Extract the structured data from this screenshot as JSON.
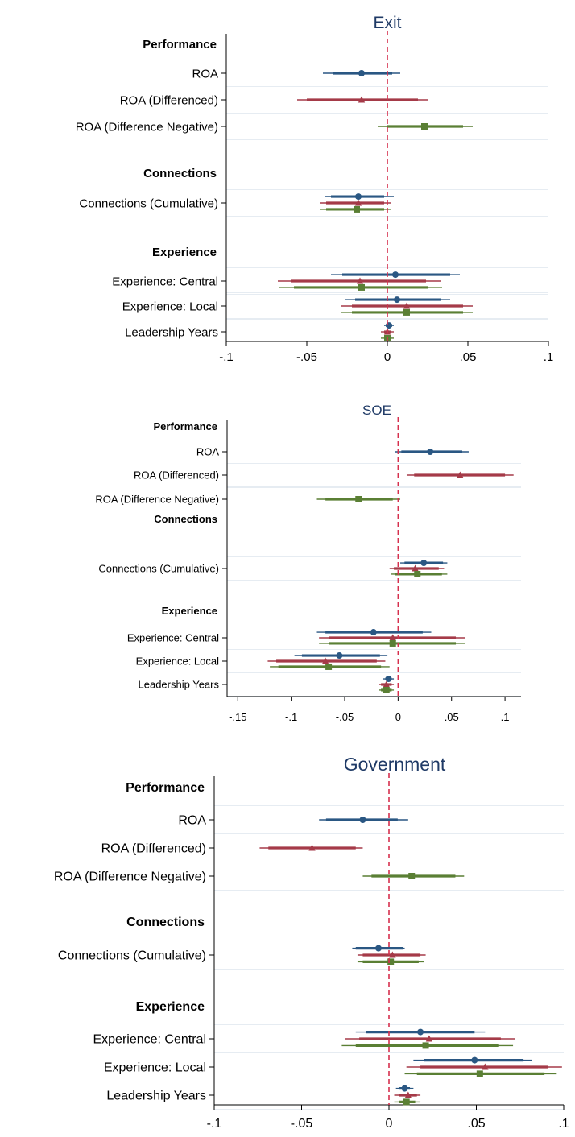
{
  "chart_data": [
    {
      "type": "coefficient-plot",
      "title": "Exit",
      "xlim": [
        -0.1,
        0.1
      ],
      "xticks": [
        -0.1,
        -0.05,
        0,
        0.05,
        0.1
      ],
      "xtick_labels": [
        "-.1",
        "-.05",
        "0",
        ".05",
        ".1"
      ],
      "reference_line": 0,
      "groups": [
        {
          "heading": "Performance",
          "rows": [
            {
              "label": "ROA",
              "estimates": [
                {
                  "series": 0,
                  "est": -0.016,
                  "ci90": [
                    -0.034,
                    0.003
                  ],
                  "ci95": [
                    -0.04,
                    0.008
                  ]
                }
              ]
            },
            {
              "label": "ROA (Differenced)",
              "estimates": [
                {
                  "series": 1,
                  "est": -0.016,
                  "ci90": [
                    -0.05,
                    0.019
                  ],
                  "ci95": [
                    -0.056,
                    0.025
                  ]
                }
              ]
            },
            {
              "label": "ROA (Difference Negative)",
              "estimates": [
                {
                  "series": 2,
                  "est": 0.023,
                  "ci90": [
                    0.0,
                    0.047
                  ],
                  "ci95": [
                    -0.006,
                    0.053
                  ]
                }
              ]
            }
          ]
        },
        {
          "heading": "Connections",
          "rows": [
            {
              "label": "Connections (Cumulative)",
              "estimates": [
                {
                  "series": 0,
                  "est": -0.018,
                  "ci90": [
                    -0.035,
                    -0.002
                  ],
                  "ci95": [
                    -0.039,
                    0.004
                  ]
                },
                {
                  "series": 1,
                  "est": -0.018,
                  "ci90": [
                    -0.038,
                    -0.002
                  ],
                  "ci95": [
                    -0.042,
                    0.002
                  ]
                },
                {
                  "series": 2,
                  "est": -0.019,
                  "ci90": [
                    -0.038,
                    -0.002
                  ],
                  "ci95": [
                    -0.042,
                    0.002
                  ]
                }
              ]
            }
          ]
        },
        {
          "heading": "Experience",
          "rows": [
            {
              "label": "Experience: Central",
              "estimates": [
                {
                  "series": 0,
                  "est": 0.005,
                  "ci90": [
                    -0.028,
                    0.039
                  ],
                  "ci95": [
                    -0.035,
                    0.045
                  ]
                },
                {
                  "series": 1,
                  "est": -0.017,
                  "ci90": [
                    -0.06,
                    0.024
                  ],
                  "ci95": [
                    -0.068,
                    0.033
                  ]
                },
                {
                  "series": 2,
                  "est": -0.016,
                  "ci90": [
                    -0.058,
                    0.025
                  ],
                  "ci95": [
                    -0.067,
                    0.034
                  ]
                }
              ]
            },
            {
              "label": "Experience: Local",
              "estimates": [
                {
                  "series": 0,
                  "est": 0.006,
                  "ci90": [
                    -0.02,
                    0.033
                  ],
                  "ci95": [
                    -0.026,
                    0.039
                  ]
                },
                {
                  "series": 1,
                  "est": 0.012,
                  "ci90": [
                    -0.022,
                    0.047
                  ],
                  "ci95": [
                    -0.029,
                    0.053
                  ]
                },
                {
                  "series": 2,
                  "est": 0.012,
                  "ci90": [
                    -0.022,
                    0.047
                  ],
                  "ci95": [
                    -0.029,
                    0.053
                  ]
                }
              ]
            },
            {
              "label": "Leadership Years",
              "estimates": [
                {
                  "series": 0,
                  "est": 0.001,
                  "ci90": [
                    -0.001,
                    0.003
                  ],
                  "ci95": [
                    -0.002,
                    0.004
                  ]
                },
                {
                  "series": 1,
                  "est": 0.0,
                  "ci90": [
                    -0.002,
                    0.002
                  ],
                  "ci95": [
                    -0.004,
                    0.004
                  ]
                },
                {
                  "series": 2,
                  "est": 0.0,
                  "ci90": [
                    -0.002,
                    0.002
                  ],
                  "ci95": [
                    -0.004,
                    0.004
                  ]
                }
              ]
            }
          ]
        }
      ]
    },
    {
      "type": "coefficient-plot",
      "title": "SOE",
      "xlim": [
        -0.16,
        0.115
      ],
      "xticks": [
        -0.15,
        -0.1,
        -0.05,
        0,
        0.05,
        0.1
      ],
      "xtick_labels": [
        "-.15",
        "-.1",
        "-.05",
        "0",
        ".05",
        ".1"
      ],
      "reference_line": 0,
      "groups": [
        {
          "heading": "Performance",
          "rows": [
            {
              "label": "ROA",
              "estimates": [
                {
                  "series": 0,
                  "est": 0.03,
                  "ci90": [
                    0.003,
                    0.06
                  ],
                  "ci95": [
                    -0.003,
                    0.066
                  ]
                }
              ]
            },
            {
              "label": "ROA (Differenced)",
              "estimates": [
                {
                  "series": 1,
                  "est": 0.058,
                  "ci90": [
                    0.015,
                    0.1
                  ],
                  "ci95": [
                    0.008,
                    0.108
                  ]
                }
              ]
            },
            {
              "label": "ROA (Difference Negative)",
              "estimates": [
                {
                  "series": 2,
                  "est": -0.037,
                  "ci90": [
                    -0.068,
                    -0.005
                  ],
                  "ci95": [
                    -0.076,
                    0.002
                  ]
                }
              ]
            }
          ]
        },
        {
          "heading": "Connections",
          "rows": [
            {
              "label": "Connections (Cumulative)",
              "estimates": [
                {
                  "series": 0,
                  "est": 0.024,
                  "ci90": [
                    0.006,
                    0.042
                  ],
                  "ci95": [
                    0.002,
                    0.046
                  ]
                },
                {
                  "series": 1,
                  "est": 0.016,
                  "ci90": [
                    -0.004,
                    0.038
                  ],
                  "ci95": [
                    -0.008,
                    0.043
                  ]
                },
                {
                  "series": 2,
                  "est": 0.018,
                  "ci90": [
                    -0.003,
                    0.041
                  ],
                  "ci95": [
                    -0.007,
                    0.046
                  ]
                }
              ]
            }
          ]
        },
        {
          "heading": "Experience",
          "rows": [
            {
              "label": "Experience: Central",
              "estimates": [
                {
                  "series": 0,
                  "est": -0.023,
                  "ci90": [
                    -0.068,
                    0.023
                  ],
                  "ci95": [
                    -0.076,
                    0.031
                  ]
                },
                {
                  "series": 1,
                  "est": -0.005,
                  "ci90": [
                    -0.065,
                    0.054
                  ],
                  "ci95": [
                    -0.074,
                    0.063
                  ]
                },
                {
                  "series": 2,
                  "est": -0.005,
                  "ci90": [
                    -0.065,
                    0.054
                  ],
                  "ci95": [
                    -0.074,
                    0.063
                  ]
                }
              ]
            },
            {
              "label": "Experience: Local",
              "estimates": [
                {
                  "series": 0,
                  "est": -0.055,
                  "ci90": [
                    -0.09,
                    -0.017
                  ],
                  "ci95": [
                    -0.097,
                    -0.01
                  ]
                },
                {
                  "series": 1,
                  "est": -0.068,
                  "ci90": [
                    -0.114,
                    -0.02
                  ],
                  "ci95": [
                    -0.122,
                    -0.012
                  ]
                },
                {
                  "series": 2,
                  "est": -0.065,
                  "ci90": [
                    -0.112,
                    -0.016
                  ],
                  "ci95": [
                    -0.12,
                    -0.008
                  ]
                }
              ]
            },
            {
              "label": "Leadership Years",
              "estimates": [
                {
                  "series": 0,
                  "est": -0.009,
                  "ci90": [
                    -0.012,
                    -0.006
                  ],
                  "ci95": [
                    -0.014,
                    -0.004
                  ]
                },
                {
                  "series": 1,
                  "est": -0.011,
                  "ci90": [
                    -0.016,
                    -0.006
                  ],
                  "ci95": [
                    -0.018,
                    -0.004
                  ]
                },
                {
                  "series": 2,
                  "est": -0.011,
                  "ci90": [
                    -0.016,
                    -0.006
                  ],
                  "ci95": [
                    -0.018,
                    -0.004
                  ]
                }
              ]
            }
          ]
        }
      ]
    },
    {
      "type": "coefficient-plot",
      "title": "Government",
      "xlim": [
        -0.1,
        0.1
      ],
      "xticks": [
        -0.1,
        -0.05,
        0,
        0.05,
        0.1
      ],
      "xtick_labels": [
        "-.1",
        "-.05",
        "0",
        ".05",
        ".1"
      ],
      "reference_line": 0,
      "groups": [
        {
          "heading": "Performance",
          "rows": [
            {
              "label": "ROA",
              "estimates": [
                {
                  "series": 0,
                  "est": -0.015,
                  "ci90": [
                    -0.036,
                    0.005
                  ],
                  "ci95": [
                    -0.04,
                    0.011
                  ]
                }
              ]
            },
            {
              "label": "ROA (Differenced)",
              "estimates": [
                {
                  "series": 1,
                  "est": -0.044,
                  "ci90": [
                    -0.069,
                    -0.019
                  ],
                  "ci95": [
                    -0.074,
                    -0.015
                  ]
                }
              ]
            },
            {
              "label": "ROA (Difference Negative)",
              "estimates": [
                {
                  "series": 2,
                  "est": 0.013,
                  "ci90": [
                    -0.01,
                    0.038
                  ],
                  "ci95": [
                    -0.015,
                    0.043
                  ]
                }
              ]
            }
          ]
        },
        {
          "heading": "Connections",
          "rows": [
            {
              "label": "Connections (Cumulative)",
              "estimates": [
                {
                  "series": 0,
                  "est": -0.006,
                  "ci90": [
                    -0.019,
                    0.008
                  ],
                  "ci95": [
                    -0.021,
                    0.009
                  ]
                },
                {
                  "series": 1,
                  "est": 0.002,
                  "ci90": [
                    -0.015,
                    0.018
                  ],
                  "ci95": [
                    -0.018,
                    0.021
                  ]
                },
                {
                  "series": 2,
                  "est": 0.001,
                  "ci90": [
                    -0.015,
                    0.017
                  ],
                  "ci95": [
                    -0.018,
                    0.02
                  ]
                }
              ]
            }
          ]
        },
        {
          "heading": "Experience",
          "rows": [
            {
              "label": "Experience: Central",
              "estimates": [
                {
                  "series": 0,
                  "est": 0.018,
                  "ci90": [
                    -0.013,
                    0.049
                  ],
                  "ci95": [
                    -0.019,
                    0.055
                  ]
                },
                {
                  "series": 1,
                  "est": 0.023,
                  "ci90": [
                    -0.017,
                    0.064
                  ],
                  "ci95": [
                    -0.025,
                    0.072
                  ]
                },
                {
                  "series": 2,
                  "est": 0.021,
                  "ci90": [
                    -0.019,
                    0.063
                  ],
                  "ci95": [
                    -0.027,
                    0.071
                  ]
                }
              ]
            },
            {
              "label": "Experience: Local",
              "estimates": [
                {
                  "series": 0,
                  "est": 0.049,
                  "ci90": [
                    0.02,
                    0.077
                  ],
                  "ci95": [
                    0.014,
                    0.082
                  ]
                },
                {
                  "series": 1,
                  "est": 0.055,
                  "ci90": [
                    0.018,
                    0.091
                  ],
                  "ci95": [
                    0.01,
                    0.099
                  ]
                },
                {
                  "series": 2,
                  "est": 0.052,
                  "ci90": [
                    0.016,
                    0.089
                  ],
                  "ci95": [
                    0.009,
                    0.096
                  ]
                }
              ]
            },
            {
              "label": "Leadership Years",
              "estimates": [
                {
                  "series": 0,
                  "est": 0.009,
                  "ci90": [
                    0.006,
                    0.012
                  ],
                  "ci95": [
                    0.004,
                    0.014
                  ]
                },
                {
                  "series": 1,
                  "est": 0.011,
                  "ci90": [
                    0.006,
                    0.016
                  ],
                  "ci95": [
                    0.003,
                    0.018
                  ]
                },
                {
                  "series": 2,
                  "est": 0.01,
                  "ci90": [
                    0.006,
                    0.015
                  ],
                  "ci95": [
                    0.003,
                    0.018
                  ]
                }
              ]
            }
          ]
        }
      ]
    }
  ],
  "series_style": [
    {
      "color": "#2a5783",
      "marker": "circle"
    },
    {
      "color": "#a53a48",
      "marker": "triangle"
    },
    {
      "color": "#5a7f34",
      "marker": "square"
    }
  ],
  "reference_line_color": "#d6304e",
  "grid_color": "#e6ecf2"
}
